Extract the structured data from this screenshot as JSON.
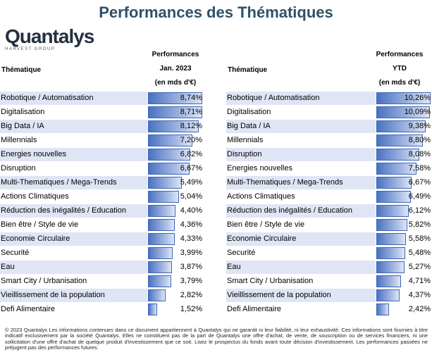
{
  "title": "Performances des Thématiques",
  "logo": {
    "brand": "Quantalys",
    "sub": "HARVEST GROUP"
  },
  "left_table": {
    "column_label": "Thématique",
    "perf_header": [
      "Performances",
      "Jan. 2023",
      "(en mds d'€)"
    ],
    "max_value": 8.74,
    "rows": [
      {
        "label": "Robotique / Automatisation",
        "value": "8,74%",
        "num": 8.74
      },
      {
        "label": "Digitalisation",
        "value": "8,71%",
        "num": 8.71
      },
      {
        "label": "Big Data / IA",
        "value": "8,12%",
        "num": 8.12
      },
      {
        "label": "Millennials",
        "value": "7,20%",
        "num": 7.2
      },
      {
        "label": "Energies nouvelles",
        "value": "6,82%",
        "num": 6.82
      },
      {
        "label": "Disruption",
        "value": "6,67%",
        "num": 6.67
      },
      {
        "label": "Multi-Thematiques / Mega-Trends",
        "value": "5,49%",
        "num": 5.49
      },
      {
        "label": "Actions Climatiques",
        "value": "5,04%",
        "num": 5.04
      },
      {
        "label": "Réduction des inégalités / Education",
        "value": "4,40%",
        "num": 4.4
      },
      {
        "label": "Bien être / Style de vie",
        "value": "4,36%",
        "num": 4.36
      },
      {
        "label": "Economie Circulaire",
        "value": "4,33%",
        "num": 4.33
      },
      {
        "label": "Securité",
        "value": "3,99%",
        "num": 3.99
      },
      {
        "label": "Eau",
        "value": "3,87%",
        "num": 3.87
      },
      {
        "label": "Smart City / Urbanisation",
        "value": "3,79%",
        "num": 3.79
      },
      {
        "label": "Vieillissement de la population",
        "value": "2,82%",
        "num": 2.82
      },
      {
        "label": "Defi Alimentaire",
        "value": "1,52%",
        "num": 1.52
      }
    ]
  },
  "right_table": {
    "column_label": "Thématique",
    "perf_header": [
      "Performances",
      "YTD",
      "(en mds d'€)"
    ],
    "max_value": 10.26,
    "rows": [
      {
        "label": "Robotique / Automatisation",
        "value": "10,26%",
        "num": 10.26
      },
      {
        "label": "Digitalisation",
        "value": "10,09%",
        "num": 10.09
      },
      {
        "label": "Big Data / IA",
        "value": "9,38%",
        "num": 9.38
      },
      {
        "label": "Millennials",
        "value": "8,80%",
        "num": 8.8
      },
      {
        "label": "Disruption",
        "value": "8,08%",
        "num": 8.08
      },
      {
        "label": "Energies nouvelles",
        "value": "7,58%",
        "num": 7.58
      },
      {
        "label": "Multi-Thematiques / Mega-Trends",
        "value": "6,67%",
        "num": 6.67
      },
      {
        "label": "Actions Climatiques",
        "value": "6,49%",
        "num": 6.49
      },
      {
        "label": "Réduction des inégalités / Education",
        "value": "6,12%",
        "num": 6.12
      },
      {
        "label": "Bien être / Style de vie",
        "value": "5,82%",
        "num": 5.82
      },
      {
        "label": "Economie Circulaire",
        "value": "5,58%",
        "num": 5.58
      },
      {
        "label": "Securité",
        "value": "5,48%",
        "num": 5.48
      },
      {
        "label": "Eau",
        "value": "5,27%",
        "num": 5.27
      },
      {
        "label": "Smart City / Urbanisation",
        "value": "4,71%",
        "num": 4.71
      },
      {
        "label": "Vieillissement de la population",
        "value": "4,37%",
        "num": 4.37
      },
      {
        "label": "Defi Alimentaire",
        "value": "2,42%",
        "num": 2.42
      }
    ]
  },
  "footer": "© 2023 Quantalys Les informations contenues dans ce document appartiennent à Quantalys qui ne garantit ni leur fiabilité, ni leur exhaustivité. Ces informations sont fournies à titre indicatif exclusivement par la société Quantalys. Elles ne constituent pas de la part de Quantalys une offre d'achat, de vente, de souscription ou de services financiers, ni une sollicitation d'une offre d'achat de quelque produit d'investissement que ce soit. Lisez le prospectus du fonds avant toute décision d'investissement. Les performances passées ne préjugent pas des performances futures."
}
